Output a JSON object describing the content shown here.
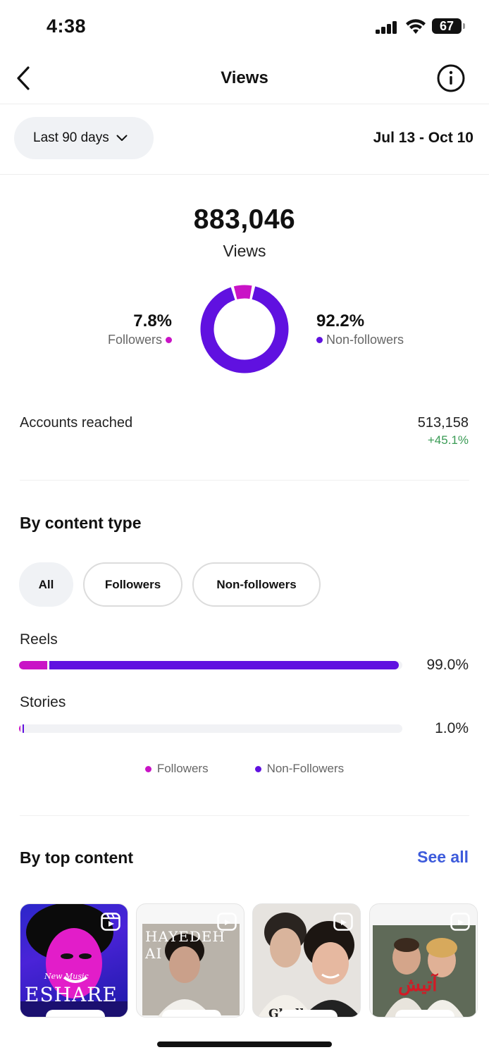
{
  "status": {
    "time": "4:38",
    "battery": "67"
  },
  "header": {
    "title": "Views"
  },
  "range": {
    "selector_label": "Last 90 days",
    "dates": "Jul 13 - Oct 10"
  },
  "summary": {
    "total_views": "883,046",
    "total_label": "Views",
    "followers_pct": "7.8%",
    "followers_label": "Followers",
    "nonfollowers_pct": "92.2%",
    "nonfollowers_label": "Non-followers",
    "followers_share": 0.078
  },
  "reach": {
    "label": "Accounts reached",
    "value": "513,158",
    "delta": "+45.1%"
  },
  "content_type": {
    "title": "By content type",
    "filters": [
      "All",
      "Followers",
      "Non-followers"
    ],
    "active_filter": "All",
    "rows": [
      {
        "label": "Reels",
        "pct": "99.0%",
        "share": 0.99,
        "followers_share": 0.075
      },
      {
        "label": "Stories",
        "pct": "1.0%",
        "share": 0.01,
        "followers_share": 0.3
      }
    ],
    "legend": [
      "Followers",
      "Non-Followers"
    ]
  },
  "top_content": {
    "title": "By top content",
    "see_all": "See all",
    "thumbnails": [
      {
        "caption_top": "New Music",
        "caption_main": "ESHARE"
      },
      {
        "caption_main": "HAYEDEH AI"
      },
      {
        "caption_main": "Ghalb Man"
      },
      {
        "caption_main": "آتیش"
      }
    ]
  },
  "colors": {
    "followers": "#c913c6",
    "nonfollowers": "#6011e0",
    "accent": "#3d5bdb",
    "positive": "#3a9b55"
  },
  "icons": [
    "back-arrow-icon",
    "info-icon",
    "chevron-down-icon",
    "reel-icon",
    "signal-icon",
    "wifi-icon",
    "battery-icon"
  ]
}
